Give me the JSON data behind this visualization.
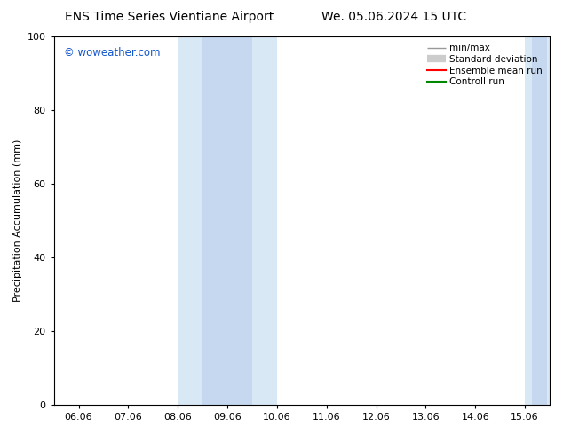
{
  "title_left": "ENS Time Series Vientiane Airport",
  "title_right": "We. 05.06.2024 15 UTC",
  "ylabel": "Precipitation Accumulation (mm)",
  "ylim": [
    0,
    100
  ],
  "yticks": [
    0,
    20,
    40,
    60,
    80,
    100
  ],
  "x_labels": [
    "06.06",
    "07.06",
    "08.06",
    "09.06",
    "10.06",
    "11.06",
    "12.06",
    "13.06",
    "14.06",
    "15.06"
  ],
  "x_values": [
    0,
    1,
    2,
    3,
    4,
    5,
    6,
    7,
    8,
    9
  ],
  "xlim": [
    -0.5,
    9.5
  ],
  "outer_region1": {
    "x_start": 2.0,
    "x_end": 4.0,
    "color": "#d8e8f5"
  },
  "outer_region2": {
    "x_start": 9.0,
    "x_end": 9.5,
    "color": "#d8e8f5"
  },
  "inner_region1": {
    "x_start": 2.5,
    "x_end": 3.5,
    "color": "#c5d8ef"
  },
  "inner_region2": {
    "x_start": 9.15,
    "x_end": 9.45,
    "color": "#c5d8ef"
  },
  "watermark": "© woweather.com",
  "watermark_color": "#1155cc",
  "legend_entries": [
    {
      "label": "min/max",
      "color": "#999999",
      "lw": 1.0
    },
    {
      "label": "Standard deviation",
      "color": "#cccccc",
      "lw": 6
    },
    {
      "label": "Ensemble mean run",
      "color": "#ff0000",
      "lw": 1.5
    },
    {
      "label": "Controll run",
      "color": "#008800",
      "lw": 1.5
    }
  ],
  "bg_color": "#ffffff",
  "plot_bg_color": "#ffffff",
  "title_fontsize": 10,
  "tick_fontsize": 8,
  "label_fontsize": 8,
  "legend_fontsize": 7.5
}
